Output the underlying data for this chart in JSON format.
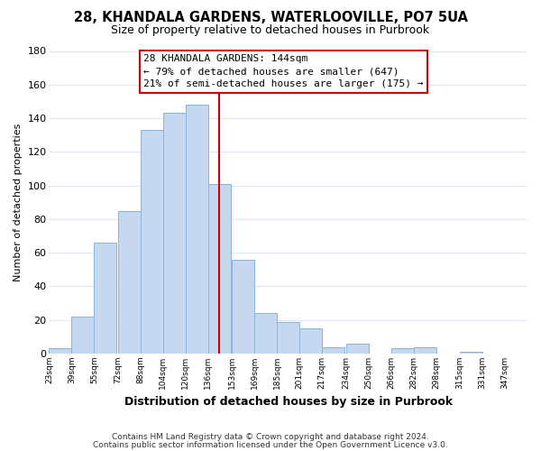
{
  "title": "28, KHANDALA GARDENS, WATERLOOVILLE, PO7 5UA",
  "subtitle": "Size of property relative to detached houses in Purbrook",
  "xlabel": "Distribution of detached houses by size in Purbrook",
  "ylabel": "Number of detached properties",
  "bar_left_edges": [
    23,
    39,
    55,
    72,
    88,
    104,
    120,
    136,
    153,
    169,
    185,
    201,
    217,
    234,
    250,
    266,
    282,
    298,
    315,
    331
  ],
  "bar_heights": [
    3,
    22,
    66,
    85,
    133,
    143,
    148,
    101,
    56,
    24,
    19,
    15,
    4,
    6,
    0,
    3,
    4,
    0,
    1,
    0
  ],
  "bar_color": "#c5d8f0",
  "bar_edgecolor": "#8ab4d8",
  "property_line_x": 144,
  "property_line_color": "#cc0000",
  "annotation_title": "28 KHANDALA GARDENS: 144sqm",
  "annotation_line1": "← 79% of detached houses are smaller (647)",
  "annotation_line2": "21% of semi-detached houses are larger (175) →",
  "annotation_box_color": "#ffffff",
  "annotation_box_edgecolor": "#cc0000",
  "ylim": [
    0,
    180
  ],
  "yticks": [
    0,
    20,
    40,
    60,
    80,
    100,
    120,
    140,
    160,
    180
  ],
  "xtick_labels": [
    "23sqm",
    "39sqm",
    "55sqm",
    "72sqm",
    "88sqm",
    "104sqm",
    "120sqm",
    "136sqm",
    "153sqm",
    "169sqm",
    "185sqm",
    "201sqm",
    "217sqm",
    "234sqm",
    "250sqm",
    "266sqm",
    "282sqm",
    "298sqm",
    "315sqm",
    "331sqm",
    "347sqm"
  ],
  "footer_line1": "Contains HM Land Registry data © Crown copyright and database right 2024.",
  "footer_line2": "Contains public sector information licensed under the Open Government Licence v3.0.",
  "background_color": "#ffffff",
  "grid_color": "#dce8f5"
}
